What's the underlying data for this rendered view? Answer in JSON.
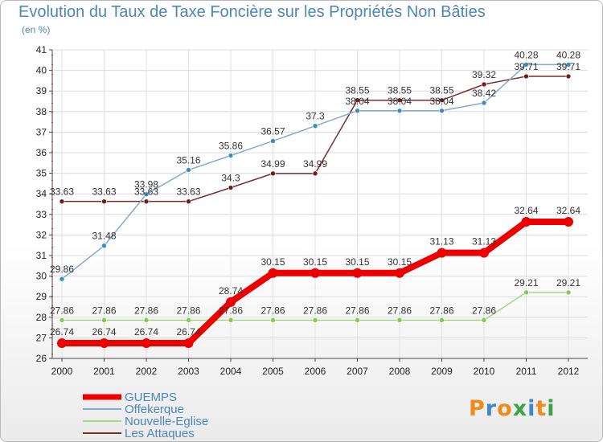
{
  "title": "Evolution du Taux de Taxe Foncière sur les Propriétés Non Bâties",
  "subtitle": "(en %)",
  "logo": [
    "P",
    "r",
    "o",
    "x",
    "i",
    "t",
    "i"
  ],
  "logo_colors": [
    "#f08a1c",
    "#3f87c8",
    "#f08a1c",
    "#3aa346",
    "#3f87c8",
    "#f08a1c",
    "#3aa346"
  ],
  "chart_data": {
    "type": "line",
    "x": [
      "2000",
      "2001",
      "2002",
      "2003",
      "2004",
      "2005",
      "2006",
      "2007",
      "2008",
      "2009",
      "2010",
      "2011",
      "2012"
    ],
    "ylim": [
      26,
      41
    ],
    "yticks": [
      26,
      27,
      28,
      29,
      30,
      31,
      32,
      33,
      34,
      35,
      36,
      37,
      38,
      39,
      40,
      41
    ],
    "grid": true,
    "legend_position": "bottom-left",
    "series": [
      {
        "name": "GUEMPS",
        "color": "#ee0000",
        "marker": "#ee0000",
        "width": 8,
        "values": [
          26.74,
          26.74,
          26.74,
          26.74,
          28.74,
          30.15,
          30.15,
          30.15,
          30.15,
          31.13,
          31.13,
          32.64,
          32.64
        ]
      },
      {
        "name": "Offekerque",
        "color": "#7fabd0",
        "marker": "#3d8ac9",
        "width": 1.5,
        "values": [
          29.86,
          31.48,
          33.98,
          35.16,
          35.86,
          36.57,
          37.3,
          38.04,
          38.04,
          38.04,
          38.42,
          40.28,
          40.28
        ]
      },
      {
        "name": "Nouvelle-Eglise",
        "color": "#a5d884",
        "marker": "#7fcb4f",
        "width": 1.5,
        "values": [
          27.86,
          27.86,
          27.86,
          27.86,
          27.86,
          27.86,
          27.86,
          27.86,
          27.86,
          27.86,
          27.86,
          29.21,
          29.21
        ]
      },
      {
        "name": "Les Attaques",
        "color": "#7a2f2f",
        "marker": "#6b1f1f",
        "width": 1.5,
        "values": [
          33.63,
          33.63,
          33.63,
          33.63,
          34.3,
          34.99,
          34.99,
          38.55,
          38.55,
          38.55,
          39.32,
          39.71,
          39.71
        ]
      }
    ],
    "labels": [
      [
        "26.74",
        "26.74",
        "26.74",
        "26.74",
        "28.74",
        "30.15",
        "30.15",
        "30.15",
        "30.15",
        "31.13",
        "31.13",
        "32.64",
        "32.64"
      ],
      [
        "29.86",
        "31.48",
        "33.98",
        "35.16",
        "35.86",
        "36.57",
        "37.3",
        "38.04",
        "38.04",
        "38.04",
        "38.42",
        "40.28",
        "40.28"
      ],
      [
        "27.86",
        "27.86",
        "27.86",
        "27.86",
        "27.86",
        "27.86",
        "27.86",
        "27.86",
        "27.86",
        "27.86",
        "27.86",
        "29.21",
        "29.21"
      ],
      [
        "33.63",
        "33.63",
        "33.63",
        "33.63",
        "34.3",
        "34.99",
        "34.99",
        "38.55",
        "38.55",
        "38.55",
        "39.32",
        "39.71",
        "39.71"
      ]
    ]
  }
}
